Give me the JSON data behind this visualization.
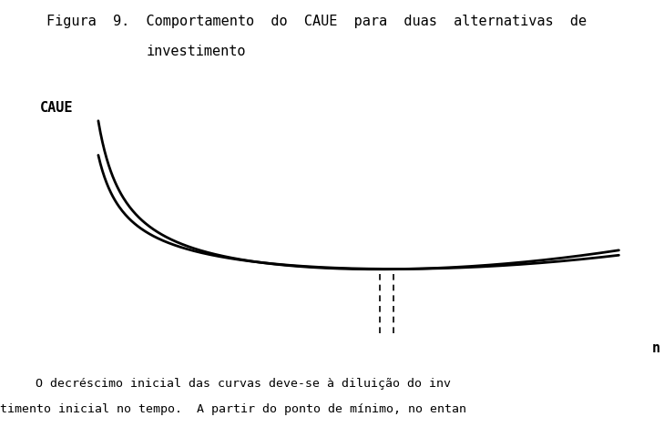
{
  "title_line1": "Figura  9.  Comportamento  do  CAUE  para  duas  alternativas  de",
  "title_line2": "investimento",
  "ylabel_text": "CAUE",
  "xlabel_text": "n",
  "background_color": "#ffffff",
  "curve_color": "#000000",
  "dashed_color": "#000000",
  "title_fontsize": 11,
  "label_fontsize": 11,
  "bottom_text1": "   O decréscimo inicial das curvas deve-se à diluição do inv",
  "bottom_text2": "timento inicial no tempo.  A partir do ponto de mínimo, no entan"
}
